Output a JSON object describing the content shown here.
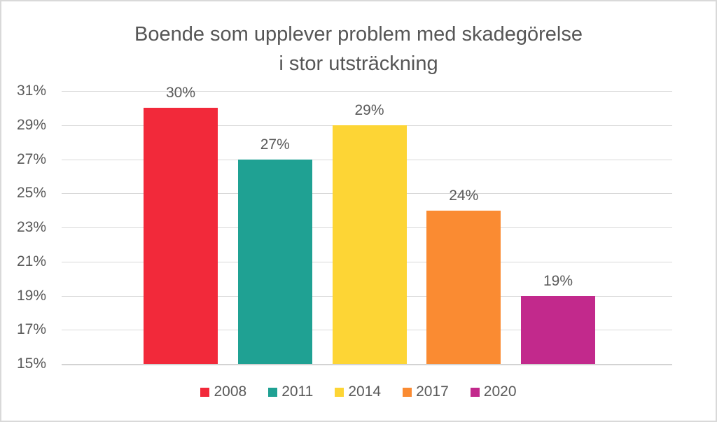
{
  "frame": {
    "background_color": "#FFFFFF",
    "border_color": "#D9D9D9"
  },
  "title": {
    "line1": "Boende som upplever problem med skadegörelse",
    "line2": "i stor utsträckning",
    "color": "#565656"
  },
  "chart_data": {
    "type": "bar",
    "title": "Boende som upplever problem med skadegörelse i stor utsträckning",
    "categories": [
      "2008",
      "2011",
      "2014",
      "2017",
      "2020"
    ],
    "values": [
      30,
      27,
      29,
      24,
      19
    ],
    "data_labels": [
      "30%",
      "27%",
      "29%",
      "24%",
      "19%"
    ],
    "series_colors": [
      "#F2293A",
      "#1FA193",
      "#FDD535",
      "#FA8B32",
      "#C2298C"
    ],
    "xlabel": "",
    "ylabel": "",
    "y_ticks": [
      "31%",
      "29%",
      "27%",
      "25%",
      "23%",
      "21%",
      "19%",
      "17%",
      "15%"
    ],
    "ylim": [
      15,
      31
    ],
    "y_step": 2,
    "grid": "horizontal",
    "gridline_color": "#D9D9D9",
    "text_color": "#595959",
    "legend_position": "bottom",
    "legend": [
      "2008",
      "2011",
      "2014",
      "2017",
      "2020"
    ]
  }
}
